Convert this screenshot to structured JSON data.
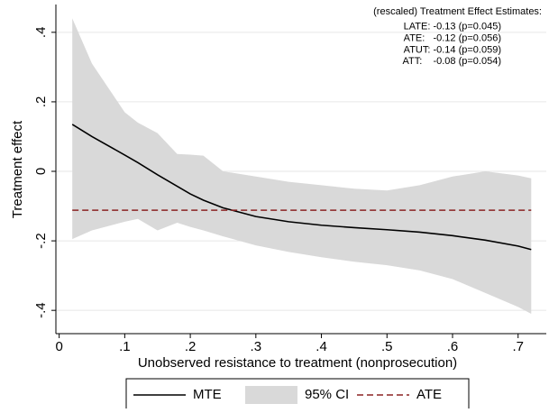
{
  "chart_data": {
    "type": "line",
    "xlabel": "Unobserved resistance to treatment (nonprosecution)",
    "ylabel": "Treatment effect",
    "annotations": [
      "(rescaled) Treatment Effect Estimates:",
      "LATE: -0.13 (p=0.045)",
      "ATE:   -0.12 (p=0.056)",
      "ATUT: -0.14 (p=0.059)",
      "ATT:    -0.08 (p=0.054)"
    ],
    "xlim": [
      -0.005,
      0.743
    ],
    "ylim": [
      -0.467,
      0.48
    ],
    "xticks": [
      0,
      {
        "value": 0.1,
        "label": ".1"
      },
      {
        "value": 0.2,
        "label": ".2"
      },
      {
        "value": 0.3,
        "label": ".3"
      },
      {
        "value": 0.4,
        "label": ".4"
      },
      {
        "value": 0.5,
        "label": ".5"
      },
      {
        "value": 0.6,
        "label": ".6"
      },
      {
        "value": 0.7,
        "label": ".7"
      }
    ],
    "yticks": [
      {
        "value": -0.4,
        "label": "-.4"
      },
      {
        "value": -0.2,
        "label": "-.2"
      },
      0,
      {
        "value": 0.2,
        "label": ".2"
      },
      {
        "value": 0.4,
        "label": ".4"
      }
    ],
    "grid": true,
    "series": [
      {
        "name": "MTE",
        "color": "#000000",
        "style": "line",
        "x": [
          0.02,
          0.05,
          0.1,
          0.12,
          0.15,
          0.18,
          0.2,
          0.22,
          0.25,
          0.3,
          0.35,
          0.4,
          0.45,
          0.5,
          0.55,
          0.6,
          0.65,
          0.7,
          0.72
        ],
        "values": [
          0.135,
          0.1,
          0.047,
          0.025,
          -0.01,
          -0.043,
          -0.065,
          -0.083,
          -0.105,
          -0.13,
          -0.145,
          -0.155,
          -0.162,
          -0.168,
          -0.175,
          -0.185,
          -0.198,
          -0.215,
          -0.225
        ]
      },
      {
        "name": "95% CI",
        "color": "#d9d9d9",
        "style": "band",
        "x": [
          0.02,
          0.05,
          0.1,
          0.12,
          0.15,
          0.18,
          0.2,
          0.22,
          0.25,
          0.3,
          0.35,
          0.4,
          0.45,
          0.5,
          0.55,
          0.6,
          0.65,
          0.7,
          0.72
        ],
        "upper": [
          0.44,
          0.31,
          0.17,
          0.14,
          0.11,
          0.05,
          0.048,
          0.045,
          0.0,
          -0.015,
          -0.03,
          -0.04,
          -0.05,
          -0.055,
          -0.04,
          -0.015,
          0.0,
          -0.012,
          -0.02
        ],
        "lower": [
          -0.195,
          -0.17,
          -0.145,
          -0.137,
          -0.17,
          -0.148,
          -0.16,
          -0.17,
          -0.187,
          -0.213,
          -0.232,
          -0.247,
          -0.26,
          -0.27,
          -0.285,
          -0.31,
          -0.35,
          -0.39,
          -0.41
        ]
      },
      {
        "name": "ATE",
        "color": "#8b2323",
        "style": "dash",
        "x": [
          0.02,
          0.72
        ],
        "values": [
          -0.112,
          -0.112
        ]
      }
    ]
  }
}
